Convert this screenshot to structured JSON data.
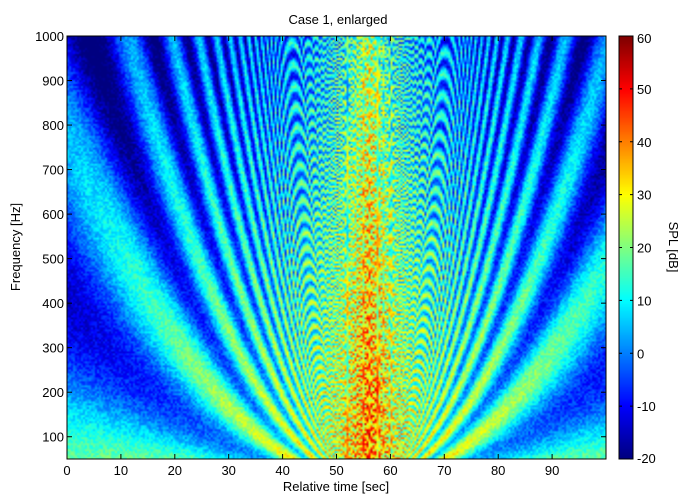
{
  "chart_data": {
    "type": "heatmap",
    "title": "Case 1, enlarged",
    "xlabel": "Relative time [sec]",
    "ylabel": "Frequency [Hz]",
    "xlim": [
      0,
      100
    ],
    "ylim": [
      50,
      1000
    ],
    "xticks": [
      0,
      10,
      20,
      30,
      40,
      50,
      60,
      70,
      80,
      90
    ],
    "yticks": [
      100,
      200,
      300,
      400,
      500,
      600,
      700,
      800,
      900,
      1000
    ],
    "grid": false,
    "colorbar": {
      "label": "SPL [dB]",
      "range": [
        -20,
        60
      ],
      "ticks": [
        -20,
        -10,
        0,
        10,
        20,
        30,
        40,
        50,
        60
      ],
      "colormap": "jet"
    },
    "features": {
      "closest_approach_time": 56,
      "approximate_peak_SPL_dB": 55,
      "background_SPL_dB": 12
    }
  }
}
